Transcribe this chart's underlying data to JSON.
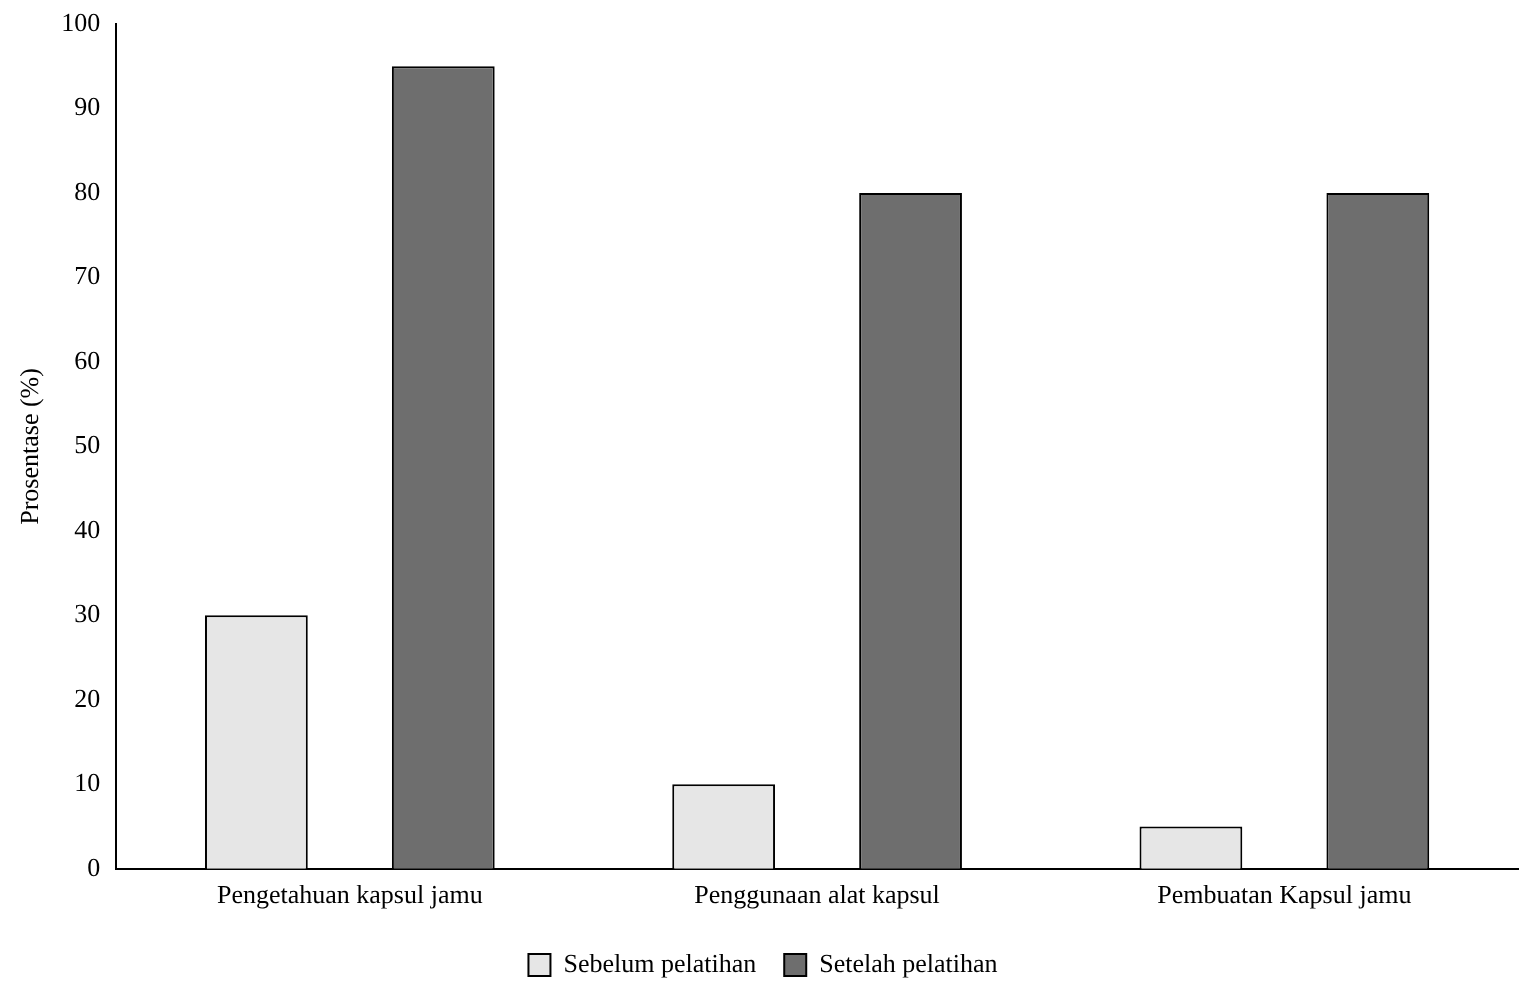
{
  "chart_data": {
    "type": "bar",
    "ylabel": "Prosentase (%)",
    "categories": [
      "Pengetahuan kapsul jamu",
      "Penggunaan alat kapsul",
      "Pembuatan Kapsul jamu"
    ],
    "series": [
      {
        "name": "Sebelum pelatihan",
        "color": "#e6e6e6",
        "values": [
          30,
          10,
          5
        ]
      },
      {
        "name": "Setelah pelatihan",
        "color": "#6e6e6e",
        "values": [
          95,
          80,
          80
        ]
      }
    ],
    "ylim": [
      0,
      100
    ],
    "yticks": [
      0,
      10,
      20,
      30,
      40,
      50,
      60,
      70,
      80,
      90,
      100
    ],
    "grid": false,
    "legend": "bottom"
  }
}
